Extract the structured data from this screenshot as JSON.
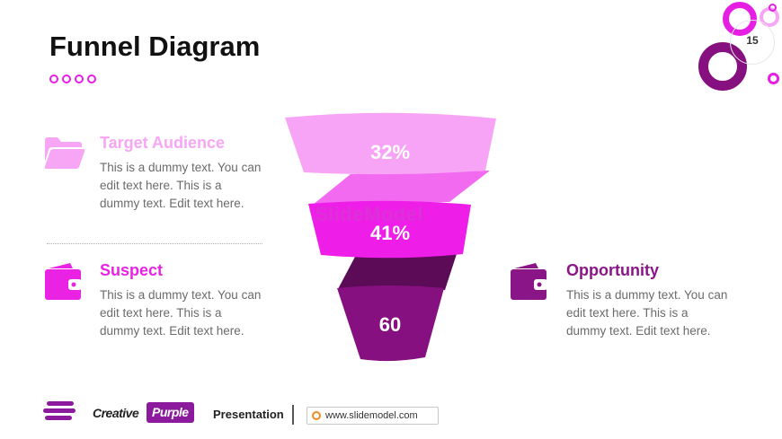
{
  "slide": {
    "title": "Funnel Diagram",
    "page_number": "15"
  },
  "funnel": {
    "segments": [
      {
        "label": "32%",
        "color": "#f8a4f6"
      },
      {
        "label": "41%",
        "color": "#ee1ee8"
      },
      {
        "label": "60",
        "color": "#86107f"
      }
    ]
  },
  "items": [
    {
      "title": "Target Audience",
      "text": "This is a dummy text. You can edit text here. This is a dummy text. Edit text here.",
      "color": "#f7a6f6",
      "icon": "folder-icon"
    },
    {
      "title": "Suspect",
      "text": "This is a dummy text. You can edit text here. This is a dummy text. Edit text here.",
      "color": "#e922e4",
      "icon": "wallet-icon"
    },
    {
      "title": "Opportunity",
      "text": "This is a dummy text. You can edit text here. This is a dummy text. Edit text here.",
      "color": "#8a1587",
      "icon": "wallet-icon"
    }
  ],
  "watermark": "SlideModel",
  "footer": {
    "brand_left": "Creative",
    "brand_badge": "Purple",
    "presentation": "Presentation",
    "url": "www.slidemodel.com"
  }
}
